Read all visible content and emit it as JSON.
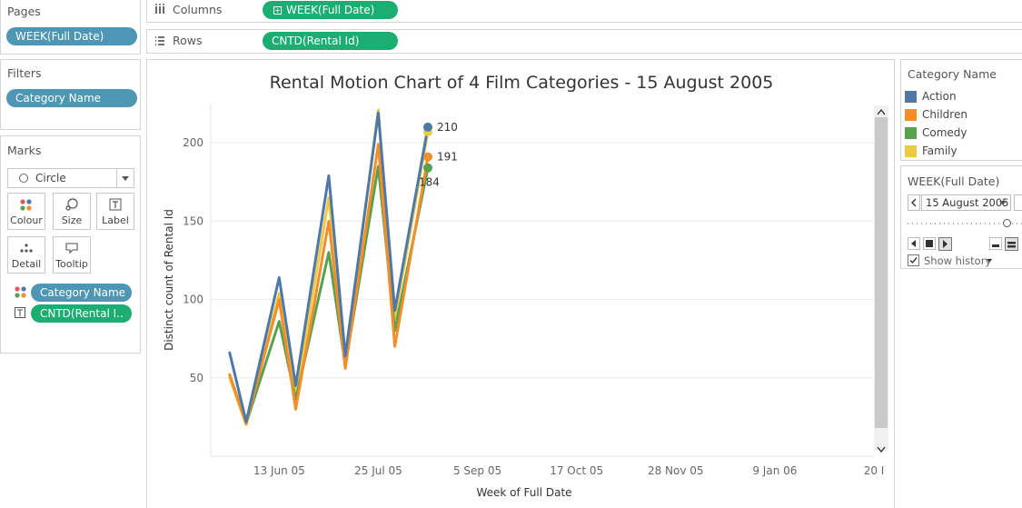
{
  "pages": {
    "title": "Pages",
    "pill": "WEEK(Full Date)"
  },
  "filters": {
    "title": "Filters",
    "pill": "Category Name"
  },
  "marks": {
    "title": "Marks",
    "type": "Circle",
    "buttons": {
      "colour": "Colour",
      "size": "Size",
      "label": "Label",
      "detail": "Detail",
      "tooltip": "Tooltip"
    },
    "fields": [
      "Category Name",
      "CNTD(Rental I.."
    ]
  },
  "columns": {
    "title": "Columns",
    "pill": "WEEK(Full Date)"
  },
  "rows": {
    "title": "Rows",
    "pill": "CNTD(Rental Id)"
  },
  "legend": {
    "title": "Category Name",
    "items": [
      {
        "label": "Action",
        "color": "#4e79a7"
      },
      {
        "label": "Children",
        "color": "#f28e2b"
      },
      {
        "label": "Comedy",
        "color": "#59a14f"
      },
      {
        "label": "Family",
        "color": "#edc948"
      }
    ]
  },
  "page_control": {
    "title": "WEEK(Full Date)",
    "current": "15 August 2005",
    "show_history": "Show history",
    "show_history_checked": true,
    "slider_position": 0.85
  },
  "chart_data": {
    "type": "line",
    "title": "Rental Motion Chart of 4 Film Categories - 15 August 2005",
    "xlabel": "Week of Full Date",
    "ylabel": "Distinct count of Rental Id",
    "ylim": [
      0,
      225
    ],
    "xlim": [
      "2005-05-15",
      "2006-02-20"
    ],
    "x_ticks": [
      "13 Jun 05",
      "25 Jul 05",
      "5 Sep 05",
      "17 Oct 05",
      "28 Nov 05",
      "9 Jan 06",
      "20 I"
    ],
    "x_tick_dates": [
      "2005-06-13",
      "2005-07-25",
      "2005-09-05",
      "2005-10-17",
      "2005-11-28",
      "2006-01-09",
      "2006-02-20"
    ],
    "y_ticks": [
      50,
      100,
      150,
      200
    ],
    "grid": true,
    "x": [
      "2005-05-23",
      "2005-05-30",
      "2005-06-13",
      "2005-06-20",
      "2005-07-04",
      "2005-07-11",
      "2005-07-25",
      "2005-08-01",
      "2005-08-15"
    ],
    "series": [
      {
        "name": "Action",
        "color": "#4e79a7",
        "values": [
          66,
          22,
          114,
          45,
          179,
          64,
          219,
          93,
          210
        ],
        "label": "210"
      },
      {
        "name": "Children",
        "color": "#f28e2b",
        "values": [
          52,
          21,
          100,
          30,
          150,
          56,
          199,
          70,
          191
        ],
        "label": "191"
      },
      {
        "name": "Comedy",
        "color": "#59a14f",
        "values": [
          52,
          21,
          86,
          36,
          130,
          58,
          185,
          80,
          184
        ],
        "label": "184"
      },
      {
        "name": "Family",
        "color": "#edc948",
        "values": [
          50,
          20,
          104,
          38,
          165,
          60,
          221,
          88,
          207
        ],
        "label": ""
      }
    ]
  }
}
